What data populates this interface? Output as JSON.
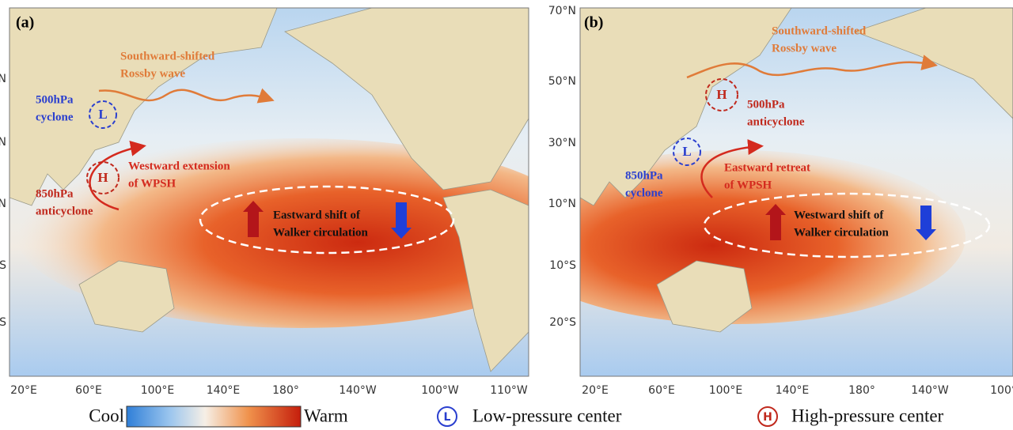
{
  "panels": [
    {
      "label": "(a)",
      "lat_labels": [
        "N",
        "N",
        "N",
        "S",
        "S"
      ],
      "lon_labels": [
        "20°E",
        "60°E",
        "100°E",
        "140°E",
        "180°",
        "140°W",
        "100°W",
        "110°W"
      ],
      "rossby": [
        "Southward-shifted",
        "Rossby wave"
      ],
      "upper": [
        "500hPa",
        "cyclone"
      ],
      "upper_symbol": "L",
      "lower": [
        "850hPa",
        "anticyclone"
      ],
      "lower_symbol": "H",
      "wpsh": [
        "Westward extension",
        "of WPSH"
      ],
      "walker": [
        "Eastward shift of",
        "Walker circulation"
      ]
    },
    {
      "label": "(b)",
      "lat_labels": [
        "70°N",
        "50°N",
        "30°N",
        "10°N",
        "10°S",
        "20°S"
      ],
      "lon_labels": [
        "20°E",
        "60°E",
        "100°E",
        "140°E",
        "180°",
        "140°W",
        "100°"
      ],
      "rossby": [
        "Southward-shifted",
        "Rossby wave"
      ],
      "upper": [
        "500hPa",
        "anticyclone"
      ],
      "upper_symbol": "H",
      "lower": [
        "850hPa",
        "cyclone"
      ],
      "lower_symbol": "L",
      "wpsh": [
        "Eastward retreat",
        "of WPSH"
      ],
      "walker": [
        "Westward shift of",
        "Walker circulation"
      ]
    }
  ],
  "legend": {
    "cool": "Cool",
    "warm": "Warm",
    "low_symbol": "L",
    "low": "Low-pressure center",
    "high_symbol": "H",
    "high": "High-pressure center"
  }
}
